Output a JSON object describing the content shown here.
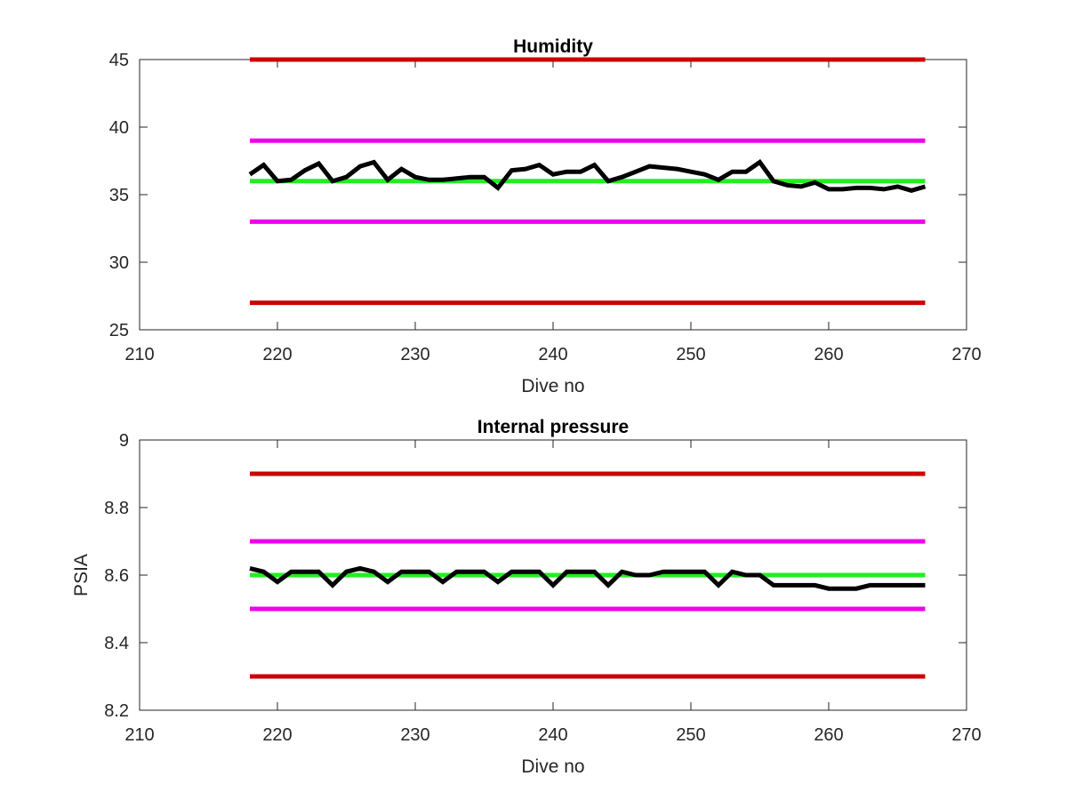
{
  "chart_data": [
    {
      "type": "line",
      "title": "Humidity",
      "xlabel": "Dive no",
      "ylabel": "",
      "xlim": [
        210,
        270
      ],
      "ylim": [
        25,
        45
      ],
      "xticks": [
        210,
        220,
        230,
        240,
        250,
        260,
        270
      ],
      "yticks": [
        25,
        30,
        35,
        40,
        45
      ],
      "grid": false,
      "legend": "none",
      "series": [
        {
          "color": "#cc0000",
          "x": [
            218,
            267
          ],
          "y": [
            45,
            45
          ]
        },
        {
          "color": "#cc0000",
          "x": [
            218,
            267
          ],
          "y": [
            27,
            27
          ]
        },
        {
          "color": "#ee00ee",
          "x": [
            218,
            267
          ],
          "y": [
            39,
            39
          ]
        },
        {
          "color": "#ee00ee",
          "x": [
            218,
            267
          ],
          "y": [
            33,
            33
          ]
        },
        {
          "color": "#22ee22",
          "x": [
            218,
            267
          ],
          "y": [
            36,
            36
          ]
        },
        {
          "color": "#000000",
          "x": [
            218,
            219,
            220,
            221,
            222,
            223,
            224,
            225,
            226,
            227,
            228,
            229,
            230,
            231,
            232,
            233,
            234,
            235,
            236,
            237,
            238,
            239,
            240,
            241,
            242,
            243,
            244,
            245,
            246,
            247,
            248,
            249,
            250,
            251,
            252,
            253,
            254,
            255,
            256,
            257,
            258,
            259,
            260,
            261,
            262,
            263,
            264,
            265,
            266,
            267
          ],
          "y": [
            36.5,
            37.2,
            36.0,
            36.1,
            36.8,
            37.3,
            36.0,
            36.3,
            37.1,
            37.4,
            36.1,
            36.9,
            36.3,
            36.1,
            36.1,
            36.2,
            36.3,
            36.3,
            35.5,
            36.8,
            36.9,
            37.2,
            36.5,
            36.7,
            36.7,
            37.2,
            36.0,
            36.3,
            36.7,
            37.1,
            37.0,
            36.9,
            36.7,
            36.5,
            36.1,
            36.7,
            36.7,
            37.4,
            36.0,
            35.7,
            35.6,
            35.9,
            35.4,
            35.4,
            35.5,
            35.5,
            35.4,
            35.6,
            35.3,
            35.6
          ]
        }
      ]
    },
    {
      "type": "line",
      "title": "Internal pressure",
      "xlabel": "Dive no",
      "ylabel": "PSIA",
      "xlim": [
        210,
        270
      ],
      "ylim": [
        8.2,
        9.0
      ],
      "xticks": [
        210,
        220,
        230,
        240,
        250,
        260,
        270
      ],
      "yticks": [
        8.2,
        8.4,
        8.6,
        8.8,
        9.0
      ],
      "ytick_labels": [
        "8.2",
        "8.4",
        "8.6",
        "8.8",
        "9"
      ],
      "grid": false,
      "legend": "none",
      "series": [
        {
          "color": "#cc0000",
          "x": [
            218,
            267
          ],
          "y": [
            8.9,
            8.9
          ]
        },
        {
          "color": "#cc0000",
          "x": [
            218,
            267
          ],
          "y": [
            8.3,
            8.3
          ]
        },
        {
          "color": "#ee00ee",
          "x": [
            218,
            267
          ],
          "y": [
            8.7,
            8.7
          ]
        },
        {
          "color": "#ee00ee",
          "x": [
            218,
            267
          ],
          "y": [
            8.5,
            8.5
          ]
        },
        {
          "color": "#22ee22",
          "x": [
            218,
            267
          ],
          "y": [
            8.6,
            8.6
          ]
        },
        {
          "color": "#000000",
          "x": [
            218,
            219,
            220,
            221,
            222,
            223,
            224,
            225,
            226,
            227,
            228,
            229,
            230,
            231,
            232,
            233,
            234,
            235,
            236,
            237,
            238,
            239,
            240,
            241,
            242,
            243,
            244,
            245,
            246,
            247,
            248,
            249,
            250,
            251,
            252,
            253,
            254,
            255,
            256,
            257,
            258,
            259,
            260,
            261,
            262,
            263,
            264,
            265,
            266,
            267
          ],
          "y": [
            8.62,
            8.61,
            8.58,
            8.61,
            8.61,
            8.61,
            8.57,
            8.61,
            8.62,
            8.61,
            8.58,
            8.61,
            8.61,
            8.61,
            8.58,
            8.61,
            8.61,
            8.61,
            8.58,
            8.61,
            8.61,
            8.61,
            8.57,
            8.61,
            8.61,
            8.61,
            8.57,
            8.61,
            8.6,
            8.6,
            8.61,
            8.61,
            8.61,
            8.61,
            8.57,
            8.61,
            8.6,
            8.6,
            8.57,
            8.57,
            8.57,
            8.57,
            8.56,
            8.56,
            8.56,
            8.57,
            8.57,
            8.57,
            8.57,
            8.57
          ]
        }
      ]
    }
  ]
}
